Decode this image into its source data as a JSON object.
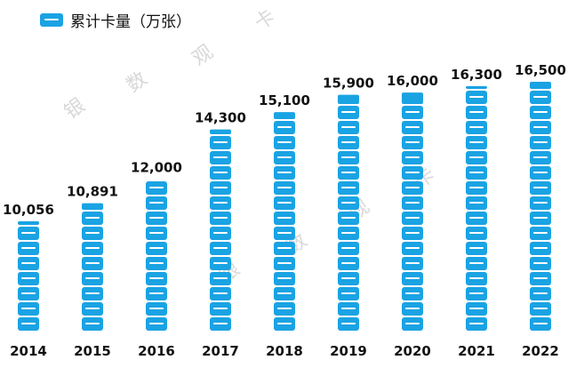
{
  "legend": {
    "label": "累计卡量（万张）"
  },
  "watermarks": [
    "银",
    "数",
    "观",
    "卡",
    "银",
    "数",
    "观",
    "卡"
  ],
  "colors": {
    "card": "#1aa3e3",
    "card_stripe": "#ffffff",
    "text": "#111111"
  },
  "chart_data": {
    "type": "bar",
    "categories": [
      "2014",
      "2015",
      "2016",
      "2017",
      "2018",
      "2019",
      "2020",
      "2021",
      "2022"
    ],
    "series": [
      {
        "name": "累计卡量（万张）",
        "values": [
          10056,
          10891,
          12000,
          14300,
          15100,
          15900,
          16000,
          16300,
          16500
        ],
        "labels": [
          "10,056",
          "10,891",
          "12,000",
          "14,300",
          "15,100",
          "15,900",
          "16,000",
          "16,300",
          "16,500"
        ]
      }
    ],
    "legend_position": "top-left",
    "grid": false
  }
}
